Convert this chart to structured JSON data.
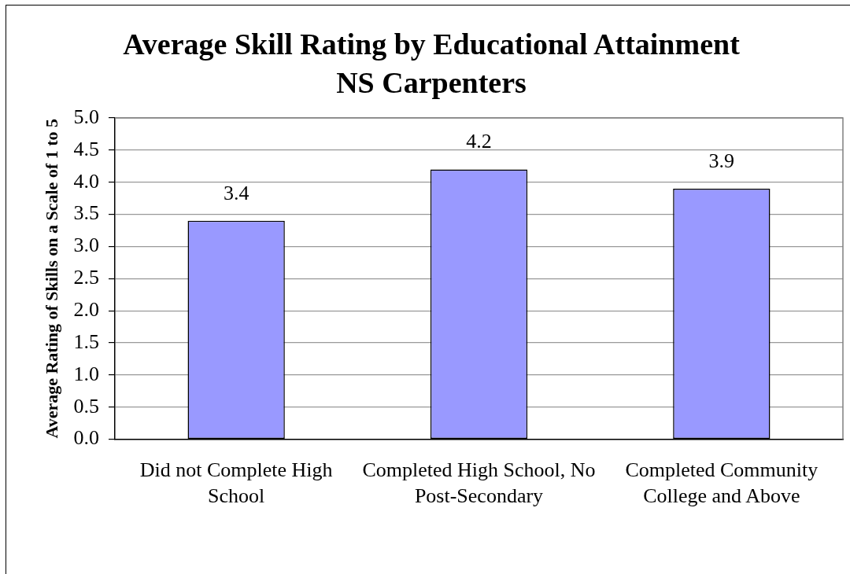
{
  "chart_data": {
    "type": "bar",
    "title": "Average Skill Rating by Educational Attainment",
    "subtitle": "NS Carpenters",
    "ylabel": "Average Rating of Skills on a Scale of 1 to 5",
    "categories": [
      "Did not Complete High School",
      "Completed High School, No Post-Secondary",
      "Completed Community College and Above"
    ],
    "values": [
      3.4,
      4.2,
      3.9
    ],
    "color": "#9999ff",
    "ylim": [
      0,
      5
    ],
    "yticks": [
      {
        "value": 0,
        "label": "0.0"
      },
      0.5,
      {
        "value": 1,
        "label": "1.0"
      },
      1.5,
      {
        "value": 2,
        "label": "2.0"
      },
      2.5,
      {
        "value": 3,
        "label": "3.0"
      },
      3.5,
      {
        "value": 4,
        "label": "4.0"
      },
      4.5,
      {
        "value": 5,
        "label": "5.0"
      }
    ],
    "grid": "y",
    "data_labels": true
  }
}
